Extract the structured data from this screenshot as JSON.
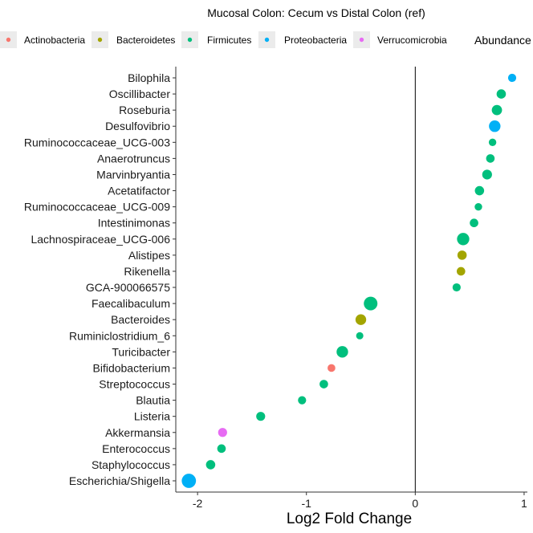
{
  "chart_data": {
    "type": "scatter",
    "title": "Mucosal Colon: Cecum vs Distal Colon (ref)",
    "xlabel": "Log2 Fold Change",
    "ylabel": "",
    "xlim": [
      -2.2,
      1.03
    ],
    "xticks": [
      -2,
      -1,
      0,
      1
    ],
    "vline": 0,
    "grid": false,
    "legend": {
      "placement": "top",
      "entries": [
        "Actinobacteria",
        "Bacteroidetes",
        "Firmicutes",
        "Proteobacteria",
        "Verrucomicrobia"
      ],
      "size_title": "Abundance"
    },
    "colors": {
      "Actinobacteria": "#F8766D",
      "Bacteroidetes": "#A3A500",
      "Firmicutes": "#00BF7D",
      "Proteobacteria": "#00B0F6",
      "Verrucomicrobia": "#E76BF3"
    },
    "points": [
      {
        "genus": "Bilophila",
        "log2fc": 0.89,
        "phylum": "Proteobacteria",
        "abundance": 2.5
      },
      {
        "genus": "Oscillibacter",
        "log2fc": 0.79,
        "phylum": "Firmicutes",
        "abundance": 3.5
      },
      {
        "genus": "Roseburia",
        "log2fc": 0.75,
        "phylum": "Firmicutes",
        "abundance": 4.5
      },
      {
        "genus": "Desulfovibrio",
        "log2fc": 0.73,
        "phylum": "Proteobacteria",
        "abundance": 6
      },
      {
        "genus": "Ruminococcaceae_UCG-003",
        "log2fc": 0.71,
        "phylum": "Firmicutes",
        "abundance": 2
      },
      {
        "genus": "Anaerotruncus",
        "log2fc": 0.69,
        "phylum": "Firmicutes",
        "abundance": 2.8
      },
      {
        "genus": "Marvinbryantia",
        "log2fc": 0.66,
        "phylum": "Firmicutes",
        "abundance": 4
      },
      {
        "genus": "Acetatifactor",
        "log2fc": 0.59,
        "phylum": "Firmicutes",
        "abundance": 3.5
      },
      {
        "genus": "Ruminococcaceae_UCG-009",
        "log2fc": 0.58,
        "phylum": "Firmicutes",
        "abundance": 2
      },
      {
        "genus": "Intestinimonas",
        "log2fc": 0.54,
        "phylum": "Firmicutes",
        "abundance": 2.8
      },
      {
        "genus": "Lachnospiraceae_UCG-006",
        "log2fc": 0.44,
        "phylum": "Firmicutes",
        "abundance": 7
      },
      {
        "genus": "Alistipes",
        "log2fc": 0.43,
        "phylum": "Bacteroidetes",
        "abundance": 3.5
      },
      {
        "genus": "Rikenella",
        "log2fc": 0.42,
        "phylum": "Bacteroidetes",
        "abundance": 2.8
      },
      {
        "genus": "GCA-900066575",
        "log2fc": 0.38,
        "phylum": "Firmicutes",
        "abundance": 2.5
      },
      {
        "genus": "Faecalibaculum",
        "log2fc": -0.41,
        "phylum": "Firmicutes",
        "abundance": 9
      },
      {
        "genus": "Bacteroides",
        "log2fc": -0.5,
        "phylum": "Bacteroidetes",
        "abundance": 5
      },
      {
        "genus": "Ruminiclostridium_6",
        "log2fc": -0.51,
        "phylum": "Firmicutes",
        "abundance": 1.8
      },
      {
        "genus": "Turicibacter",
        "log2fc": -0.67,
        "phylum": "Firmicutes",
        "abundance": 6
      },
      {
        "genus": "Bifidobacterium",
        "log2fc": -0.77,
        "phylum": "Actinobacteria",
        "abundance": 2.2
      },
      {
        "genus": "Streptococcus",
        "log2fc": -0.84,
        "phylum": "Firmicutes",
        "abundance": 2.8
      },
      {
        "genus": "Blautia",
        "log2fc": -1.04,
        "phylum": "Firmicutes",
        "abundance": 2.5
      },
      {
        "genus": "Listeria",
        "log2fc": -1.42,
        "phylum": "Firmicutes",
        "abundance": 3.2
      },
      {
        "genus": "Akkermansia",
        "log2fc": -1.77,
        "phylum": "Verrucomicrobia",
        "abundance": 3.2
      },
      {
        "genus": "Enterococcus",
        "log2fc": -1.78,
        "phylum": "Firmicutes",
        "abundance": 2.8
      },
      {
        "genus": "Staphylococcus",
        "log2fc": -1.88,
        "phylum": "Firmicutes",
        "abundance": 3.5
      },
      {
        "genus": "Escherichia/Shigella",
        "log2fc": -2.08,
        "phylum": "Proteobacteria",
        "abundance": 10
      }
    ]
  }
}
